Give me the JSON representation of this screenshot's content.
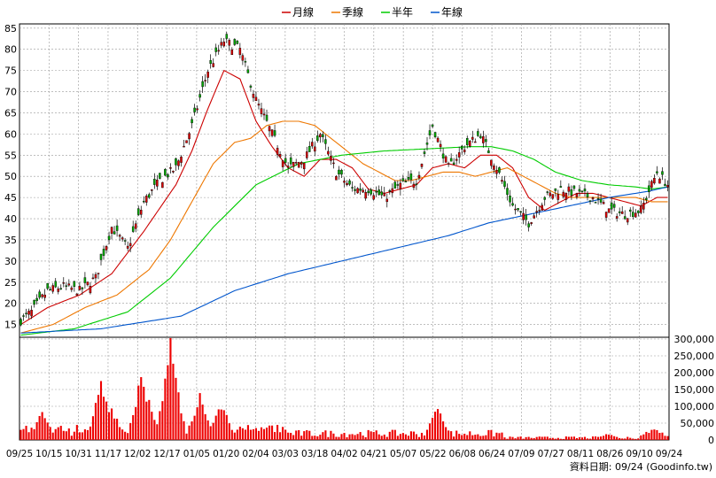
{
  "chart_data": [
    {
      "type": "candlestick",
      "legend": [
        {
          "name": "月線",
          "color": "#cc0000"
        },
        {
          "name": "季線",
          "color": "#ee7700"
        },
        {
          "name": "半年",
          "color": "#00cc00"
        },
        {
          "name": "年線",
          "color": "#0055cc"
        }
      ],
      "ylim": [
        12,
        86
      ],
      "y_ticks": [
        15,
        20,
        25,
        30,
        35,
        40,
        45,
        50,
        55,
        60,
        65,
        70,
        75,
        80,
        85
      ],
      "x_labels": [
        "09/25",
        "10/15",
        "10/31",
        "11/17",
        "12/02",
        "12/17",
        "01/05",
        "01/20",
        "02/04",
        "03/03",
        "03/18",
        "04/02",
        "04/21",
        "05/07",
        "05/22",
        "06/08",
        "06/24",
        "07/09",
        "07/27",
        "08/11",
        "08/26",
        "09/10",
        "09/24"
      ],
      "n_days": 243,
      "grid": true,
      "price_anchors": {
        "x": [
          0,
          4,
          10,
          16,
          22,
          28,
          34,
          40,
          46,
          52,
          58,
          64,
          70,
          76,
          82,
          88,
          94,
          100,
          106,
          112,
          118,
          124,
          130,
          136,
          142,
          148,
          154,
          160,
          166,
          172,
          178,
          184,
          190,
          196,
          202,
          208,
          214,
          220,
          226,
          232,
          238,
          242
        ],
        "close": [
          16,
          18,
          23,
          24,
          23,
          26,
          38,
          33,
          44,
          49,
          52,
          62,
          75,
          82,
          80,
          68,
          60,
          52,
          54,
          60,
          51,
          47,
          47,
          45,
          48,
          49,
          62,
          52,
          57,
          60,
          52,
          43,
          39,
          45,
          47,
          46,
          45,
          42,
          41,
          42,
          51,
          48
        ]
      },
      "ma_anchors": {
        "month": {
          "x": [
            0,
            10,
            22,
            34,
            46,
            58,
            64,
            70,
            76,
            82,
            88,
            94,
            100,
            106,
            112,
            118,
            124,
            130,
            136,
            142,
            148,
            154,
            160,
            166,
            172,
            178,
            184,
            190,
            196,
            202,
            208,
            214,
            220,
            226,
            232,
            238,
            242
          ],
          "y": [
            15,
            19,
            22,
            27,
            37,
            48,
            56,
            66,
            75,
            73,
            63,
            57,
            52,
            50,
            54,
            54,
            52,
            47,
            46,
            47,
            48,
            52,
            53,
            52,
            55,
            55,
            52,
            45,
            42,
            44,
            46,
            46,
            45,
            44,
            43,
            45,
            45
          ]
        },
        "quarter": {
          "x": [
            0,
            12,
            24,
            36,
            48,
            56,
            64,
            72,
            80,
            86,
            92,
            98,
            104,
            110,
            116,
            122,
            128,
            134,
            140,
            146,
            152,
            158,
            164,
            170,
            176,
            182,
            188,
            194,
            200,
            206,
            212,
            218,
            224,
            230,
            236,
            242
          ],
          "y": [
            13,
            15,
            19,
            22,
            28,
            35,
            44,
            53,
            58,
            59,
            62,
            63,
            63,
            62,
            59,
            56,
            53,
            51,
            49,
            49,
            50,
            51,
            51,
            50,
            51,
            52,
            50,
            48,
            46,
            45,
            45,
            45,
            45,
            45,
            44,
            44
          ]
        },
        "half": {
          "x": [
            0,
            20,
            40,
            56,
            72,
            88,
            104,
            120,
            136,
            152,
            168,
            176,
            184,
            192,
            200,
            210,
            220,
            230,
            236,
            242
          ],
          "y": [
            12.5,
            14,
            18,
            26,
            38,
            48,
            53,
            55,
            56,
            56.5,
            57,
            57,
            56,
            54,
            51,
            49,
            48,
            47.5,
            47,
            47.5
          ]
        },
        "year": {
          "x": [
            0,
            30,
            60,
            80,
            100,
            120,
            140,
            160,
            175,
            190,
            205,
            220,
            235,
            242
          ],
          "y": [
            13,
            14,
            17,
            23,
            27,
            30,
            33,
            36,
            39,
            41,
            43,
            45,
            46.5,
            47.5
          ]
        }
      }
    },
    {
      "type": "bar",
      "name": "volume",
      "ylim": [
        0,
        300000
      ],
      "y_ticks": [
        "0",
        "50,000",
        "100,000",
        "150,000",
        "200,000",
        "250,000",
        "300,000"
      ],
      "y_tick_values": [
        0,
        50000,
        100000,
        150000,
        200000,
        250000,
        300000
      ],
      "spikes": [
        {
          "x": 8,
          "v": 90000
        },
        {
          "x": 30,
          "v": 180000
        },
        {
          "x": 31,
          "v": 140000
        },
        {
          "x": 34,
          "v": 100000
        },
        {
          "x": 45,
          "v": 200000
        },
        {
          "x": 47,
          "v": 150000
        },
        {
          "x": 55,
          "v": 220000
        },
        {
          "x": 56,
          "v": 310000
        },
        {
          "x": 57,
          "v": 200000
        },
        {
          "x": 67,
          "v": 140000
        },
        {
          "x": 75,
          "v": 120000
        },
        {
          "x": 156,
          "v": 110000
        },
        {
          "x": 220,
          "v": 60000
        },
        {
          "x": 237,
          "v": 40000
        }
      ]
    }
  ],
  "footer": {
    "date_stamp": "資料日期: 09/24 (Goodinfo.tw)"
  }
}
